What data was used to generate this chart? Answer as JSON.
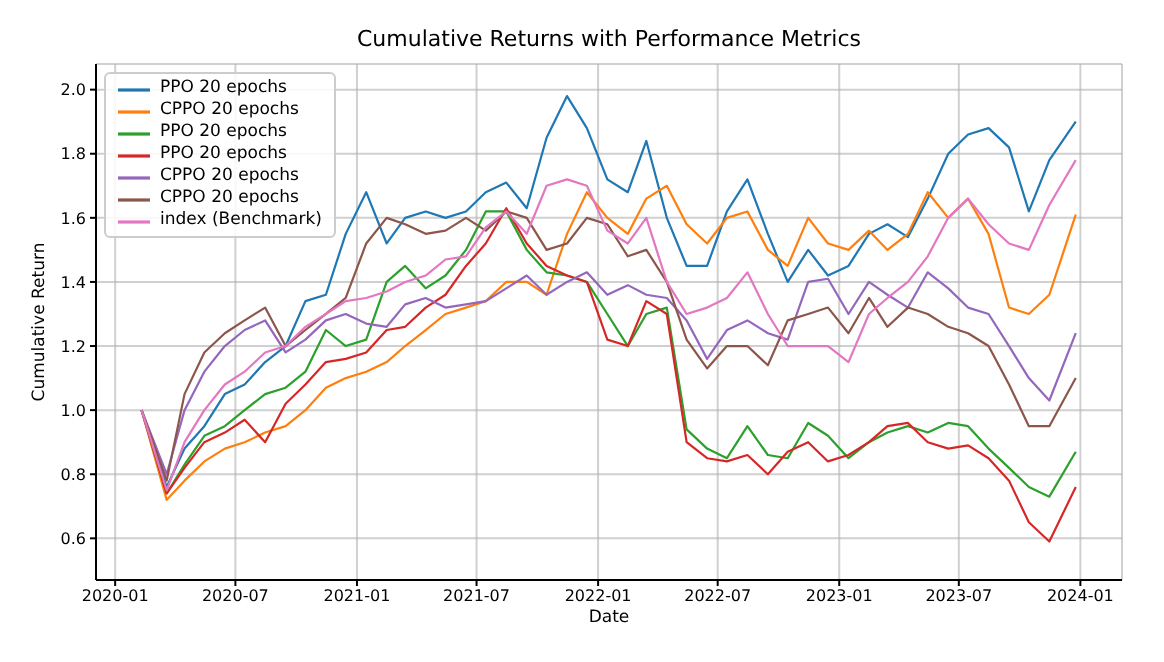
{
  "chart_data": {
    "type": "line",
    "title": "Cumulative Returns with Performance Metrics",
    "xlabel": "Date",
    "ylabel": "Cumulative Return",
    "x": [
      "2020-02-10",
      "2020-03-19",
      "2020-04-15",
      "2020-05-15",
      "2020-06-15",
      "2020-07-15",
      "2020-08-15",
      "2020-09-15",
      "2020-10-15",
      "2020-11-15",
      "2020-12-15",
      "2021-01-15",
      "2021-02-15",
      "2021-03-15",
      "2021-04-15",
      "2021-05-15",
      "2021-06-15",
      "2021-07-15",
      "2021-08-15",
      "2021-09-15",
      "2021-10-15",
      "2021-11-15",
      "2021-12-15",
      "2022-01-15",
      "2022-02-15",
      "2022-03-15",
      "2022-04-15",
      "2022-05-15",
      "2022-06-15",
      "2022-07-15",
      "2022-08-15",
      "2022-09-15",
      "2022-10-15",
      "2022-11-15",
      "2022-12-15",
      "2023-01-15",
      "2023-02-15",
      "2023-03-15",
      "2023-04-15",
      "2023-05-15",
      "2023-06-15",
      "2023-07-15",
      "2023-08-15",
      "2023-09-15",
      "2023-10-15",
      "2023-11-15",
      "2023-12-25"
    ],
    "series": [
      {
        "name": "PPO 20 epochs",
        "color": "#1f77b4",
        "values": [
          1.0,
          0.76,
          0.88,
          0.95,
          1.05,
          1.08,
          1.15,
          1.2,
          1.34,
          1.36,
          1.55,
          1.68,
          1.52,
          1.6,
          1.62,
          1.6,
          1.62,
          1.68,
          1.71,
          1.63,
          1.85,
          1.98,
          1.88,
          1.72,
          1.68,
          1.84,
          1.6,
          1.45,
          1.45,
          1.62,
          1.72,
          1.55,
          1.4,
          1.5,
          1.42,
          1.45,
          1.55,
          1.58,
          1.54,
          1.66,
          1.8,
          1.86,
          1.88,
          1.82,
          1.62,
          1.78,
          1.9
        ]
      },
      {
        "name": "CPPO 20 epochs",
        "color": "#ff7f0e",
        "values": [
          1.0,
          0.72,
          0.78,
          0.84,
          0.88,
          0.9,
          0.93,
          0.95,
          1.0,
          1.07,
          1.1,
          1.12,
          1.15,
          1.2,
          1.25,
          1.3,
          1.32,
          1.34,
          1.4,
          1.4,
          1.36,
          1.55,
          1.68,
          1.6,
          1.55,
          1.66,
          1.7,
          1.58,
          1.52,
          1.6,
          1.62,
          1.5,
          1.45,
          1.6,
          1.52,
          1.5,
          1.56,
          1.5,
          1.55,
          1.68,
          1.6,
          1.66,
          1.55,
          1.32,
          1.3,
          1.36,
          1.61
        ]
      },
      {
        "name": "PPO 20 epochs",
        "color": "#2ca02c",
        "values": [
          1.0,
          0.74,
          0.83,
          0.92,
          0.95,
          1.0,
          1.05,
          1.07,
          1.12,
          1.25,
          1.2,
          1.22,
          1.4,
          1.45,
          1.38,
          1.42,
          1.5,
          1.62,
          1.62,
          1.5,
          1.43,
          1.42,
          1.4,
          1.3,
          1.2,
          1.3,
          1.32,
          0.94,
          0.88,
          0.85,
          0.95,
          0.86,
          0.85,
          0.96,
          0.92,
          0.85,
          0.9,
          0.93,
          0.95,
          0.93,
          0.96,
          0.95,
          0.88,
          0.82,
          0.76,
          0.73,
          0.87
        ]
      },
      {
        "name": "PPO 20 epochs",
        "color": "#d62728",
        "values": [
          1.0,
          0.74,
          0.82,
          0.9,
          0.93,
          0.97,
          0.9,
          1.02,
          1.08,
          1.15,
          1.16,
          1.18,
          1.25,
          1.26,
          1.32,
          1.36,
          1.45,
          1.52,
          1.63,
          1.52,
          1.45,
          1.42,
          1.4,
          1.22,
          1.2,
          1.34,
          1.3,
          0.9,
          0.85,
          0.84,
          0.86,
          0.8,
          0.87,
          0.9,
          0.84,
          0.86,
          0.9,
          0.95,
          0.96,
          0.9,
          0.88,
          0.89,
          0.85,
          0.78,
          0.65,
          0.59,
          0.76
        ]
      },
      {
        "name": "CPPO 20 epochs",
        "color": "#9467bd",
        "values": [
          1.0,
          0.8,
          1.0,
          1.12,
          1.2,
          1.25,
          1.28,
          1.18,
          1.22,
          1.28,
          1.3,
          1.27,
          1.26,
          1.33,
          1.35,
          1.32,
          1.33,
          1.34,
          1.38,
          1.42,
          1.36,
          1.4,
          1.43,
          1.36,
          1.39,
          1.36,
          1.35,
          1.28,
          1.16,
          1.25,
          1.28,
          1.24,
          1.22,
          1.4,
          1.41,
          1.3,
          1.4,
          1.36,
          1.32,
          1.43,
          1.38,
          1.32,
          1.3,
          1.2,
          1.1,
          1.03,
          1.24
        ]
      },
      {
        "name": "CPPO 20 epochs",
        "color": "#8c564b",
        "values": [
          1.0,
          0.78,
          1.05,
          1.18,
          1.24,
          1.28,
          1.32,
          1.2,
          1.25,
          1.3,
          1.35,
          1.52,
          1.6,
          1.58,
          1.55,
          1.56,
          1.6,
          1.56,
          1.62,
          1.6,
          1.5,
          1.52,
          1.6,
          1.58,
          1.48,
          1.5,
          1.4,
          1.22,
          1.13,
          1.2,
          1.2,
          1.14,
          1.28,
          1.3,
          1.32,
          1.24,
          1.35,
          1.26,
          1.32,
          1.3,
          1.26,
          1.24,
          1.2,
          1.08,
          0.95,
          0.95,
          1.1
        ]
      },
      {
        "name": "index (Benchmark)",
        "color": "#e377c2",
        "values": [
          1.0,
          0.75,
          0.9,
          1.0,
          1.08,
          1.12,
          1.18,
          1.2,
          1.26,
          1.3,
          1.34,
          1.35,
          1.37,
          1.4,
          1.42,
          1.47,
          1.48,
          1.57,
          1.62,
          1.55,
          1.7,
          1.72,
          1.7,
          1.56,
          1.52,
          1.6,
          1.4,
          1.3,
          1.32,
          1.35,
          1.43,
          1.3,
          1.2,
          1.2,
          1.2,
          1.15,
          1.3,
          1.35,
          1.4,
          1.48,
          1.6,
          1.66,
          1.58,
          1.52,
          1.5,
          1.64,
          1.78
        ]
      }
    ],
    "xlim": [
      "2019-12-03",
      "2024-03-04"
    ],
    "xticks": [
      "2020-01",
      "2020-07",
      "2021-01",
      "2021-07",
      "2022-01",
      "2022-07",
      "2023-01",
      "2023-07",
      "2024-01"
    ],
    "ylim": [
      0.47,
      2.08
    ],
    "yticks": [
      0.6,
      0.8,
      {
        "value": 1.0,
        "label": "1.0"
      },
      1.2,
      1.4,
      1.6,
      1.8,
      {
        "value": 2.0,
        "label": "2.0"
      }
    ],
    "grid": true,
    "legend": "top left",
    "line_style": "solid",
    "marker": "none"
  }
}
